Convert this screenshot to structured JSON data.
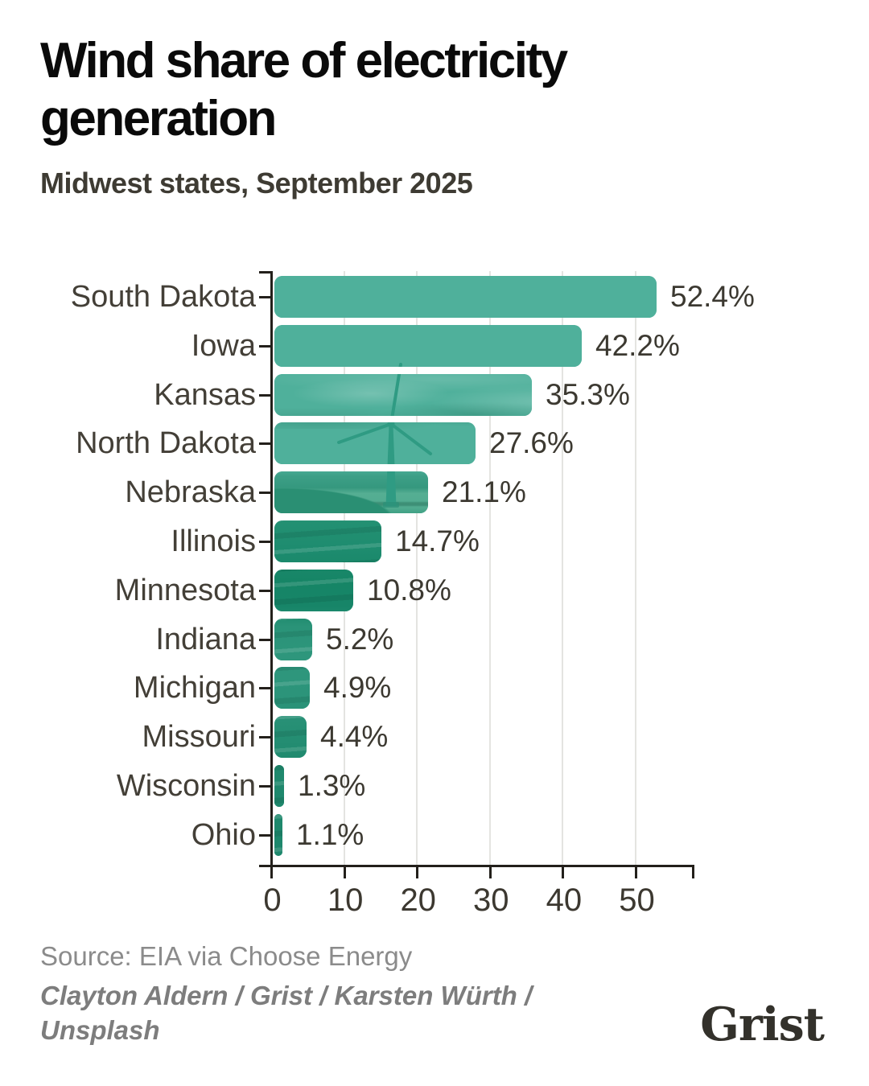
{
  "header": {
    "title_line1": "Wind share of electricity",
    "title_line2": "generation",
    "subtitle": "Midwest states, September 2025"
  },
  "chart_data": {
    "type": "bar",
    "orientation": "horizontal",
    "title": "Wind share of electricity generation",
    "subtitle": "Midwest states, September 2025",
    "categories": [
      "South Dakota",
      "Iowa",
      "Kansas",
      "North Dakota",
      "Nebraska",
      "Illinois",
      "Minnesota",
      "Indiana",
      "Michigan",
      "Missouri",
      "Wisconsin",
      "Ohio"
    ],
    "values": [
      52.4,
      42.2,
      35.3,
      27.6,
      21.1,
      14.7,
      10.8,
      5.2,
      4.9,
      4.4,
      1.3,
      1.1
    ],
    "value_labels": [
      "52.4%",
      "42.2%",
      "35.3%",
      "27.6%",
      "21.1%",
      "14.7%",
      "10.8%",
      "5.2%",
      "4.9%",
      "4.4%",
      "1.3%",
      "1.1%"
    ],
    "unit": "%",
    "x_ticks": [
      0,
      10,
      20,
      30,
      40,
      50
    ],
    "xlim": [
      0,
      58
    ],
    "xlabel": "",
    "ylabel": "",
    "grid": "vertical gridlines at each x tick",
    "legend": "none",
    "bar_fill": "teal-tinted photo of a wind turbine in a field"
  },
  "colors": {
    "bar_sky_teal": "#4fb09b",
    "bar_field_dark": "#1e8c6f",
    "turbine": "#2f9b83",
    "axis": "#23201b",
    "gridline": "#e4e4e1",
    "label_text": "#433f37",
    "title_text": "#0a0a0a",
    "muted_text": "#8b8b8b"
  },
  "footer": {
    "source": "Source: EIA via Choose Energy",
    "credit_line1": "Clayton Aldern / Grist / Karsten Würth /",
    "credit_line2": "Unsplash",
    "logo": "Grist"
  }
}
